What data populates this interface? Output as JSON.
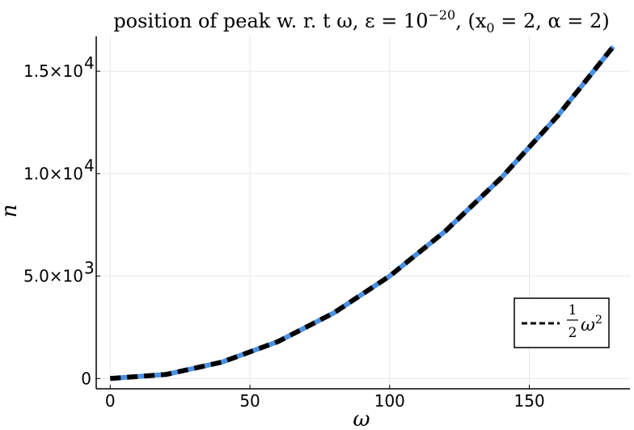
{
  "chart_data": {
    "type": "line",
    "title_text": "position of peak w. r. t ω,  ε = 10",
    "title_exp": "−20",
    "title_tail": ",  (x",
    "title_sub": "0",
    "title_end": " = 2, α = 2)",
    "xlabel": "ω",
    "ylabel": "n",
    "xlim": [
      -5,
      186
    ],
    "ylim": [
      -500,
      16700
    ],
    "xticks": [
      0,
      50,
      100,
      150
    ],
    "xtick_labels": [
      "0",
      "50",
      "100",
      "150"
    ],
    "yticks": [
      0,
      5000,
      10000,
      15000
    ],
    "ytick_labels": [
      {
        "base": "0",
        "exp": ""
      },
      {
        "base": "5.0×10",
        "exp": "3"
      },
      {
        "base": "1.0×10",
        "exp": "4"
      },
      {
        "base": "1.5×10",
        "exp": "4"
      }
    ],
    "grid": true,
    "legend_position": "bottom-right",
    "series": [
      {
        "name": "",
        "style": "solid",
        "color": "#4a90e2",
        "x": [
          0,
          20,
          40,
          60,
          80,
          100,
          120,
          140,
          160,
          180
        ],
        "y": [
          0,
          200,
          800,
          1800,
          3200,
          5000,
          7200,
          9800,
          12800,
          16200
        ]
      },
      {
        "name": "1/2 ω²",
        "style": "dashed",
        "color": "#000000",
        "x": [
          0,
          20,
          40,
          60,
          80,
          100,
          120,
          140,
          160,
          180
        ],
        "y": [
          0,
          200,
          800,
          1800,
          3200,
          5000,
          7200,
          9800,
          12800,
          16200
        ]
      }
    ],
    "legend": {
      "frac_num": "1",
      "frac_den": "2",
      "var": "ω",
      "exp": "2"
    }
  }
}
